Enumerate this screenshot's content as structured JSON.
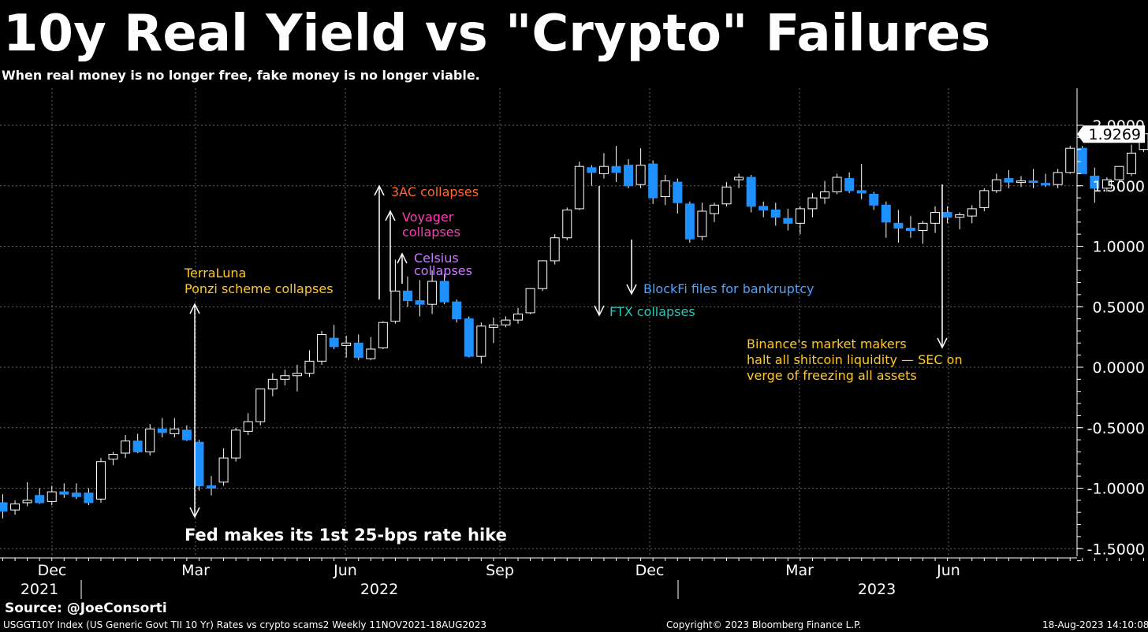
{
  "header": {
    "title": "10y Real Yield vs \"Crypto\" Failures",
    "subtitle": "When real money is no longer free, fake money is no longer viable."
  },
  "footer": {
    "source": "Source: @JoeConsorti",
    "index_line": "USGGT10Y Index (US Generic Govt TII 10 Yr) Rates vs crypto scams2  Weekly 11NOV2021-18AUG2023",
    "copyright": "Copyright© 2023 Bloomberg Finance L.P.",
    "timestamp": "18-Aug-2023 14:10:08"
  },
  "colors": {
    "background": "#000000",
    "down_candle": "#1e90ff",
    "up_candle": "#ffffff",
    "grid": "#666666",
    "annotation_yellow": "#ffc82a",
    "annotation_orange": "#ff6a2a",
    "annotation_magenta": "#ff3db4",
    "annotation_purple": "#c77dff",
    "annotation_blue": "#4ea3ff",
    "annotation_teal": "#2ec4b6",
    "annotation_white": "#ffffff"
  },
  "chart_data": {
    "type": "candlestick",
    "frequency": "weekly",
    "ylim": [
      -1.6,
      2.1
    ],
    "y_ticks": [
      -1.5,
      -1.0,
      -0.5,
      0.0,
      0.5,
      1.0,
      1.5,
      2.0
    ],
    "y_tick_labels": [
      "-1.5000",
      "-1.0000",
      "-0.5000",
      "0.0000",
      "0.5000",
      "1.0000",
      "1.5000",
      "2.0000"
    ],
    "last_value_label": "1.9269",
    "x_month_labels": [
      "Dec",
      "Mar",
      "Jun",
      "Sep",
      "Dec",
      "Mar",
      "Jun"
    ],
    "x_year_labels": [
      "2021",
      "2022",
      "2023"
    ],
    "start_week": "2021-11-12",
    "candles": [
      {
        "o": -1.12,
        "h": -1.05,
        "l": -1.25,
        "c": -1.19
      },
      {
        "o": -1.18,
        "h": -1.1,
        "l": -1.22,
        "c": -1.13
      },
      {
        "o": -1.12,
        "h": -0.95,
        "l": -1.15,
        "c": -1.1
      },
      {
        "o": -1.06,
        "h": -1.0,
        "l": -1.13,
        "c": -1.12
      },
      {
        "o": -1.11,
        "h": -0.98,
        "l": -1.14,
        "c": -1.03
      },
      {
        "o": -1.03,
        "h": -0.96,
        "l": -1.08,
        "c": -1.05
      },
      {
        "o": -1.04,
        "h": -0.96,
        "l": -1.09,
        "c": -1.07
      },
      {
        "o": -1.04,
        "h": -1.0,
        "l": -1.14,
        "c": -1.12
      },
      {
        "o": -1.09,
        "h": -0.75,
        "l": -1.12,
        "c": -0.78
      },
      {
        "o": -0.76,
        "h": -0.7,
        "l": -0.81,
        "c": -0.72
      },
      {
        "o": -0.71,
        "h": -0.56,
        "l": -0.75,
        "c": -0.61
      },
      {
        "o": -0.61,
        "h": -0.55,
        "l": -0.71,
        "c": -0.7
      },
      {
        "o": -0.7,
        "h": -0.47,
        "l": -0.73,
        "c": -0.51
      },
      {
        "o": -0.51,
        "h": -0.42,
        "l": -0.58,
        "c": -0.54
      },
      {
        "o": -0.55,
        "h": -0.42,
        "l": -0.58,
        "c": -0.51
      },
      {
        "o": -0.52,
        "h": -0.48,
        "l": -0.61,
        "c": -0.6
      },
      {
        "o": -0.62,
        "h": -0.6,
        "l": -1.02,
        "c": -0.98
      },
      {
        "o": -0.98,
        "h": -0.9,
        "l": -1.06,
        "c": -1.0
      },
      {
        "o": -0.95,
        "h": -0.67,
        "l": -0.98,
        "c": -0.75
      },
      {
        "o": -0.75,
        "h": -0.5,
        "l": -0.78,
        "c": -0.52
      },
      {
        "o": -0.53,
        "h": -0.38,
        "l": -0.56,
        "c": -0.45
      },
      {
        "o": -0.45,
        "h": -0.18,
        "l": -0.48,
        "c": -0.18
      },
      {
        "o": -0.18,
        "h": -0.05,
        "l": -0.24,
        "c": -0.1
      },
      {
        "o": -0.1,
        "h": -0.02,
        "l": -0.15,
        "c": -0.07
      },
      {
        "o": -0.07,
        "h": 0.02,
        "l": -0.2,
        "c": -0.05
      },
      {
        "o": -0.05,
        "h": 0.14,
        "l": -0.08,
        "c": 0.05
      },
      {
        "o": 0.05,
        "h": 0.3,
        "l": 0.02,
        "c": 0.27
      },
      {
        "o": 0.24,
        "h": 0.35,
        "l": 0.15,
        "c": 0.17
      },
      {
        "o": 0.18,
        "h": 0.26,
        "l": 0.08,
        "c": 0.2
      },
      {
        "o": 0.2,
        "h": 0.27,
        "l": 0.06,
        "c": 0.08
      },
      {
        "o": 0.07,
        "h": 0.25,
        "l": 0.06,
        "c": 0.15
      },
      {
        "o": 0.16,
        "h": 0.38,
        "l": 0.15,
        "c": 0.37
      },
      {
        "o": 0.38,
        "h": 0.89,
        "l": 0.36,
        "c": 0.63
      },
      {
        "o": 0.63,
        "h": 0.75,
        "l": 0.5,
        "c": 0.55
      },
      {
        "o": 0.55,
        "h": 0.72,
        "l": 0.42,
        "c": 0.52
      },
      {
        "o": 0.52,
        "h": 0.8,
        "l": 0.44,
        "c": 0.71
      },
      {
        "o": 0.71,
        "h": 0.77,
        "l": 0.52,
        "c": 0.54
      },
      {
        "o": 0.54,
        "h": 0.56,
        "l": 0.37,
        "c": 0.4
      },
      {
        "o": 0.4,
        "h": 0.42,
        "l": 0.08,
        "c": 0.09
      },
      {
        "o": 0.09,
        "h": 0.37,
        "l": 0.03,
        "c": 0.34
      },
      {
        "o": 0.33,
        "h": 0.41,
        "l": 0.2,
        "c": 0.35
      },
      {
        "o": 0.35,
        "h": 0.42,
        "l": 0.33,
        "c": 0.39
      },
      {
        "o": 0.39,
        "h": 0.49,
        "l": 0.36,
        "c": 0.44
      },
      {
        "o": 0.45,
        "h": 0.65,
        "l": 0.44,
        "c": 0.65
      },
      {
        "o": 0.65,
        "h": 0.88,
        "l": 0.63,
        "c": 0.88
      },
      {
        "o": 0.88,
        "h": 1.1,
        "l": 0.85,
        "c": 1.07
      },
      {
        "o": 1.07,
        "h": 1.32,
        "l": 1.05,
        "c": 1.3
      },
      {
        "o": 1.31,
        "h": 1.7,
        "l": 1.3,
        "c": 1.66
      },
      {
        "o": 1.65,
        "h": 1.67,
        "l": 1.5,
        "c": 1.61
      },
      {
        "o": 1.6,
        "h": 1.77,
        "l": 1.56,
        "c": 1.66
      },
      {
        "o": 1.66,
        "h": 1.83,
        "l": 1.53,
        "c": 1.61
      },
      {
        "o": 1.67,
        "h": 1.72,
        "l": 1.48,
        "c": 1.5
      },
      {
        "o": 1.51,
        "h": 1.81,
        "l": 1.48,
        "c": 1.67
      },
      {
        "o": 1.68,
        "h": 1.71,
        "l": 1.35,
        "c": 1.4
      },
      {
        "o": 1.41,
        "h": 1.59,
        "l": 1.34,
        "c": 1.54
      },
      {
        "o": 1.53,
        "h": 1.56,
        "l": 1.27,
        "c": 1.36
      },
      {
        "o": 1.35,
        "h": 1.37,
        "l": 1.03,
        "c": 1.06
      },
      {
        "o": 1.08,
        "h": 1.36,
        "l": 1.05,
        "c": 1.29
      },
      {
        "o": 1.27,
        "h": 1.36,
        "l": 1.2,
        "c": 1.34
      },
      {
        "o": 1.35,
        "h": 1.53,
        "l": 1.33,
        "c": 1.49
      },
      {
        "o": 1.55,
        "h": 1.6,
        "l": 1.48,
        "c": 1.57
      },
      {
        "o": 1.57,
        "h": 1.59,
        "l": 1.28,
        "c": 1.33
      },
      {
        "o": 1.33,
        "h": 1.37,
        "l": 1.24,
        "c": 1.3
      },
      {
        "o": 1.3,
        "h": 1.36,
        "l": 1.17,
        "c": 1.24
      },
      {
        "o": 1.23,
        "h": 1.31,
        "l": 1.13,
        "c": 1.19
      },
      {
        "o": 1.19,
        "h": 1.33,
        "l": 1.1,
        "c": 1.31
      },
      {
        "o": 1.31,
        "h": 1.44,
        "l": 1.24,
        "c": 1.4
      },
      {
        "o": 1.4,
        "h": 1.54,
        "l": 1.35,
        "c": 1.45
      },
      {
        "o": 1.45,
        "h": 1.6,
        "l": 1.43,
        "c": 1.57
      },
      {
        "o": 1.56,
        "h": 1.61,
        "l": 1.44,
        "c": 1.46
      },
      {
        "o": 1.46,
        "h": 1.68,
        "l": 1.39,
        "c": 1.44
      },
      {
        "o": 1.43,
        "h": 1.45,
        "l": 1.3,
        "c": 1.34
      },
      {
        "o": 1.34,
        "h": 1.37,
        "l": 1.07,
        "c": 1.2
      },
      {
        "o": 1.19,
        "h": 1.3,
        "l": 1.03,
        "c": 1.15
      },
      {
        "o": 1.15,
        "h": 1.25,
        "l": 1.07,
        "c": 1.13
      },
      {
        "o": 1.13,
        "h": 1.21,
        "l": 1.02,
        "c": 1.19
      },
      {
        "o": 1.19,
        "h": 1.33,
        "l": 1.11,
        "c": 1.28
      },
      {
        "o": 1.28,
        "h": 1.33,
        "l": 1.19,
        "c": 1.24
      },
      {
        "o": 1.24,
        "h": 1.28,
        "l": 1.14,
        "c": 1.26
      },
      {
        "o": 1.25,
        "h": 1.34,
        "l": 1.19,
        "c": 1.31
      },
      {
        "o": 1.32,
        "h": 1.48,
        "l": 1.29,
        "c": 1.46
      },
      {
        "o": 1.46,
        "h": 1.6,
        "l": 1.44,
        "c": 1.55
      },
      {
        "o": 1.56,
        "h": 1.63,
        "l": 1.48,
        "c": 1.53
      },
      {
        "o": 1.53,
        "h": 1.58,
        "l": 1.49,
        "c": 1.54
      },
      {
        "o": 1.54,
        "h": 1.64,
        "l": 1.48,
        "c": 1.53
      },
      {
        "o": 1.52,
        "h": 1.6,
        "l": 1.49,
        "c": 1.51
      },
      {
        "o": 1.51,
        "h": 1.64,
        "l": 1.48,
        "c": 1.61
      },
      {
        "o": 1.61,
        "h": 1.83,
        "l": 1.6,
        "c": 1.81
      },
      {
        "o": 1.81,
        "h": 1.83,
        "l": 1.6,
        "c": 1.6
      },
      {
        "o": 1.58,
        "h": 1.65,
        "l": 1.36,
        "c": 1.48
      },
      {
        "o": 1.48,
        "h": 1.57,
        "l": 1.45,
        "c": 1.55
      },
      {
        "o": 1.55,
        "h": 1.66,
        "l": 1.54,
        "c": 1.66
      },
      {
        "o": 1.6,
        "h": 1.84,
        "l": 1.58,
        "c": 1.77
      },
      {
        "o": 1.8,
        "h": 2.0,
        "l": 1.78,
        "c": 1.93
      }
    ]
  },
  "annotations": [
    {
      "key": "fed",
      "text": "Fed makes its 1st 25-bps rate hike",
      "color": "annotation_white"
    },
    {
      "key": "terra1",
      "text": "TerraLuna",
      "color": "annotation_yellow"
    },
    {
      "key": "terra2",
      "text": "Ponzi scheme collapses",
      "color": "annotation_yellow"
    },
    {
      "key": "threeac",
      "text": "3AC collapses",
      "color": "annotation_orange"
    },
    {
      "key": "voyager1",
      "text": "Voyager",
      "color": "annotation_magenta"
    },
    {
      "key": "voyager2",
      "text": "collapses",
      "color": "annotation_magenta"
    },
    {
      "key": "celsius1",
      "text": "Celsius",
      "color": "annotation_purple"
    },
    {
      "key": "celsius2",
      "text": "collapses",
      "color": "annotation_purple"
    },
    {
      "key": "blockfi",
      "text": "BlockFi files for bankruptcy",
      "color": "annotation_blue"
    },
    {
      "key": "ftx",
      "text": "FTX collapses",
      "color": "annotation_teal"
    },
    {
      "key": "binance1",
      "text": "Binance's market makers",
      "color": "annotation_yellow"
    },
    {
      "key": "binance2",
      "text": "halt all shitcoin liquidity  — SEC on",
      "color": "annotation_yellow"
    },
    {
      "key": "binance3",
      "text": "verge of freezing all assets",
      "color": "annotation_yellow"
    }
  ]
}
